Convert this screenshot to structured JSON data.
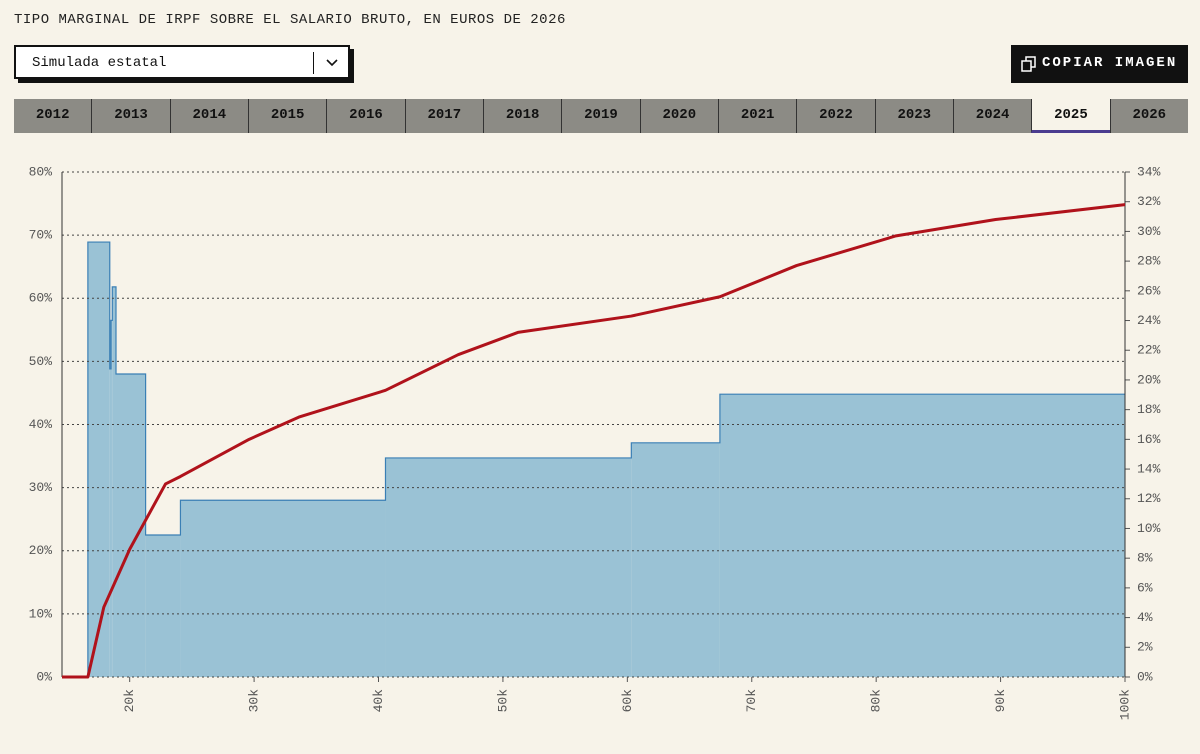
{
  "header": {
    "title": "TIPO MARGINAL DE IRPF SOBRE EL SALARIO BRUTO, EN EUROS DE 2026"
  },
  "dropdown": {
    "selected": "Simulada estatal"
  },
  "button": {
    "label": "COPIAR IMAGEN"
  },
  "tabs": [
    "2012",
    "2013",
    "2014",
    "2015",
    "2016",
    "2017",
    "2018",
    "2019",
    "2020",
    "2021",
    "2022",
    "2023",
    "2024",
    "2025",
    "2026"
  ],
  "active_tab_index": 13,
  "chart_data": {
    "type": "combo",
    "xlim": [
      14560,
      100000
    ],
    "xticks": [
      {
        "value": 20000,
        "label": "20k"
      },
      {
        "value": 30000,
        "label": "30k"
      },
      {
        "value": 40000,
        "label": "40k"
      },
      {
        "value": 50000,
        "label": "50k"
      },
      {
        "value": 60000,
        "label": "60k"
      },
      {
        "value": 70000,
        "label": "70k"
      },
      {
        "value": 80000,
        "label": "80k"
      },
      {
        "value": 90000,
        "label": "90k"
      },
      {
        "value": 100000,
        "label": "100k"
      }
    ],
    "ylim": [
      0,
      80
    ],
    "yticks": [
      {
        "value": 0,
        "label": "0%"
      },
      {
        "value": 10,
        "label": "10%"
      },
      {
        "value": 20,
        "label": "20%"
      },
      {
        "value": 30,
        "label": "30%"
      },
      {
        "value": 40,
        "label": "40%"
      },
      {
        "value": 50,
        "label": "50%"
      },
      {
        "value": 60,
        "label": "60%"
      },
      {
        "value": 70,
        "label": "70%"
      },
      {
        "value": 80,
        "label": "80%"
      }
    ],
    "y2lim": [
      0,
      34
    ],
    "y2ticks": [
      {
        "value": 0,
        "label": "0%"
      },
      {
        "value": 2,
        "label": "2%"
      },
      {
        "value": 4,
        "label": "4%"
      },
      {
        "value": 6,
        "label": "6%"
      },
      {
        "value": 8,
        "label": "8%"
      },
      {
        "value": 10,
        "label": "10%"
      },
      {
        "value": 12,
        "label": "12%"
      },
      {
        "value": 14,
        "label": "14%"
      },
      {
        "value": 16,
        "label": "16%"
      },
      {
        "value": 18,
        "label": "18%"
      },
      {
        "value": 20,
        "label": "20%"
      },
      {
        "value": 22,
        "label": "22%"
      },
      {
        "value": 24,
        "label": "24%"
      },
      {
        "value": 26,
        "label": "26%"
      },
      {
        "value": 28,
        "label": "28%"
      },
      {
        "value": 30,
        "label": "30%"
      },
      {
        "value": 32,
        "label": "32%"
      },
      {
        "value": 34,
        "label": "34%"
      }
    ],
    "grid": true,
    "series": [
      {
        "type": "step",
        "color": "#9ac2d5",
        "bins": [
          14560,
          16640,
          18400,
          18500,
          18600,
          18900,
          21280,
          24080,
          40560,
          60320,
          67440,
          100000
        ],
        "values": [
          0,
          68.9,
          48.8,
          56.5,
          61.8,
          48.0,
          22.5,
          28.0,
          34.7,
          37.1,
          44.8
        ]
      },
      {
        "type": "line",
        "axis": "y2",
        "color": "#b0121b",
        "x": [
          14560,
          16640,
          17920,
          20000,
          22880,
          24080,
          29600,
          33600,
          40560,
          46400,
          51200,
          60320,
          67440,
          73600,
          81600,
          89600,
          100000
        ],
        "values": [
          0,
          0,
          4.7,
          8.6,
          13.0,
          13.5,
          16.0,
          17.5,
          19.3,
          21.7,
          23.2,
          24.3,
          25.6,
          27.7,
          29.7,
          30.8,
          31.8
        ]
      }
    ]
  }
}
